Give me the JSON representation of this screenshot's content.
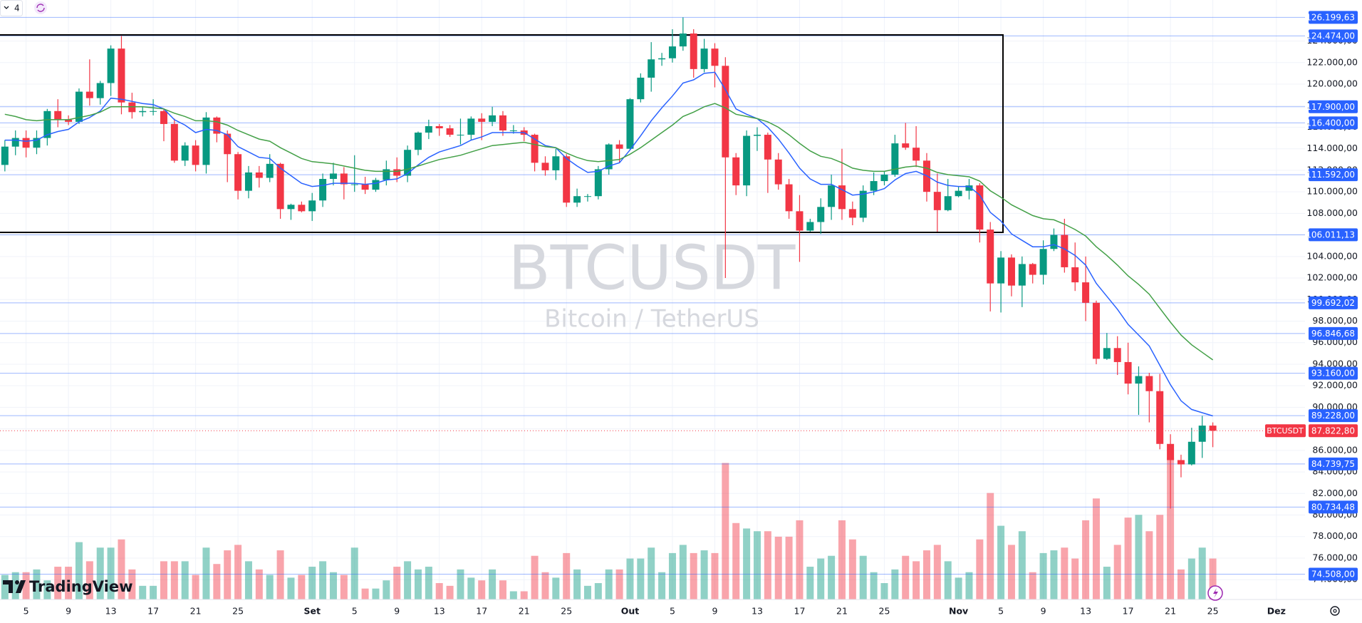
{
  "toolbar": {
    "count": "4"
  },
  "watermark": {
    "symbol": "BTCUSDT",
    "description": "Bitcoin / TetherUS"
  },
  "brand": "TradingView",
  "chart_data": {
    "type": "candlestick",
    "colors": {
      "up": "#089981",
      "down": "#f23645",
      "price_line": "#2962ff"
    },
    "grid": true,
    "xlim": [
      -0.46,
      122.7
    ],
    "xticks": [
      {
        "value": 2,
        "label": "5"
      },
      {
        "value": 6,
        "label": "9"
      },
      {
        "value": 10,
        "label": "13"
      },
      {
        "value": 14,
        "label": "17"
      },
      {
        "value": 18,
        "label": "21"
      },
      {
        "value": 22,
        "label": "25"
      },
      {
        "value": 29,
        "label": "Set"
      },
      {
        "value": 33,
        "label": "5"
      },
      {
        "value": 37,
        "label": "9"
      },
      {
        "value": 41,
        "label": "13"
      },
      {
        "value": 45,
        "label": "17"
      },
      {
        "value": 49,
        "label": "21"
      },
      {
        "value": 53,
        "label": "25"
      },
      {
        "value": 59,
        "label": "Out"
      },
      {
        "value": 63,
        "label": "5"
      },
      {
        "value": 67,
        "label": "9"
      },
      {
        "value": 71,
        "label": "13"
      },
      {
        "value": 75,
        "label": "17"
      },
      {
        "value": 79,
        "label": "21"
      },
      {
        "value": 83,
        "label": "25"
      },
      {
        "value": 90,
        "label": "Nov"
      },
      {
        "value": 94,
        "label": "5"
      },
      {
        "value": 98,
        "label": "9"
      },
      {
        "value": 102,
        "label": "13"
      },
      {
        "value": 106,
        "label": "17"
      },
      {
        "value": 110,
        "label": "21"
      },
      {
        "value": 114,
        "label": "25"
      },
      {
        "value": 120,
        "label": "Dez"
      }
    ],
    "ylim": [
      72160,
      127810
    ],
    "yticks": [
      {
        "value": 74000,
        "label": "74.000,00"
      },
      {
        "value": 76000,
        "label": "76.000,00"
      },
      {
        "value": 78000,
        "label": "78.000,00"
      },
      {
        "value": 80000,
        "label": "80.000,00"
      },
      {
        "value": 82000,
        "label": "82.000,00"
      },
      {
        "value": 84000,
        "label": "84.000,00"
      },
      {
        "value": 86000,
        "label": "86.000,00"
      },
      {
        "value": 88000,
        "label": "88.000,00"
      },
      {
        "value": 90000,
        "label": "90.000,00"
      },
      {
        "value": 92000,
        "label": "92.000,00"
      },
      {
        "value": 94000,
        "label": "94.000,00"
      },
      {
        "value": 96000,
        "label": "96.000,00"
      },
      {
        "value": 98000,
        "label": "98.000,00"
      },
      {
        "value": 100000,
        "label": "100.000,00"
      },
      {
        "value": 102000,
        "label": "102.000,00"
      },
      {
        "value": 104000,
        "label": "104.000,00"
      },
      {
        "value": 106000,
        "label": "106.000,00"
      },
      {
        "value": 108000,
        "label": "108.000,00"
      },
      {
        "value": 110000,
        "label": "110.000,00"
      },
      {
        "value": 112000,
        "label": "112.000,00"
      },
      {
        "value": 114000,
        "label": "114.000,00"
      },
      {
        "value": 116000,
        "label": "116.000,00"
      },
      {
        "value": 118000,
        "label": "118.000,00"
      },
      {
        "value": 120000,
        "label": "120.000,00"
      },
      {
        "value": 122000,
        "label": "122.000,00"
      },
      {
        "value": 124000,
        "label": "124.000,00"
      }
    ],
    "ohlc": [
      [
        112500,
        114800,
        111900,
        114200
      ],
      [
        114200,
        115700,
        113400,
        115000
      ],
      [
        115000,
        115700,
        113200,
        114100
      ],
      [
        114100,
        115700,
        113500,
        115000
      ],
      [
        115000,
        117700,
        114300,
        117500
      ],
      [
        117500,
        118600,
        116000,
        116700
      ],
      [
        116700,
        117100,
        116200,
        116500
      ],
      [
        116500,
        119600,
        116300,
        119300
      ],
      [
        119300,
        122300,
        118000,
        118700
      ],
      [
        118700,
        120300,
        118100,
        120100
      ],
      [
        120100,
        123600,
        118900,
        123300
      ],
      [
        123300,
        124474,
        117200,
        118300
      ],
      [
        118300,
        119200,
        116800,
        117400
      ],
      [
        117400,
        117900,
        117000,
        117500
      ],
      [
        117500,
        118600,
        117100,
        117500
      ],
      [
        117500,
        117700,
        114700,
        116300
      ],
      [
        116300,
        116800,
        112700,
        112900
      ],
      [
        112900,
        114600,
        112400,
        114300
      ],
      [
        114300,
        114800,
        111900,
        112500
      ],
      [
        112500,
        117400,
        111700,
        116900
      ],
      [
        116900,
        117000,
        114600,
        115400
      ],
      [
        115400,
        115700,
        110900,
        113500
      ],
      [
        113500,
        113700,
        109300,
        110100
      ],
      [
        110100,
        112400,
        109400,
        111800
      ],
      [
        111800,
        112400,
        110400,
        111300
      ],
      [
        111300,
        113500,
        110900,
        112600
      ],
      [
        112600,
        112700,
        107500,
        108400
      ],
      [
        108400,
        108900,
        107400,
        108800
      ],
      [
        108800,
        109100,
        108100,
        108200
      ],
      [
        108200,
        109900,
        107300,
        109200
      ],
      [
        109200,
        111700,
        108600,
        111200
      ],
      [
        111200,
        112700,
        110600,
        111700
      ],
      [
        111700,
        112300,
        109300,
        110700
      ],
      [
        110700,
        113400,
        110000,
        110700
      ],
      [
        110700,
        111400,
        109800,
        110200
      ],
      [
        110200,
        111300,
        110000,
        111100
      ],
      [
        111100,
        112900,
        110600,
        112100
      ],
      [
        112100,
        113200,
        110900,
        111500
      ],
      [
        111500,
        114300,
        110900,
        113900
      ],
      [
        113900,
        115600,
        113400,
        115500
      ],
      [
        115500,
        116700,
        114900,
        116100
      ],
      [
        116100,
        116300,
        115200,
        115900
      ],
      [
        115900,
        116200,
        115100,
        115300
      ],
      [
        115300,
        116800,
        114400,
        115300
      ],
      [
        115300,
        117000,
        114800,
        116800
      ],
      [
        116800,
        117300,
        114800,
        116500
      ],
      [
        116500,
        117900,
        116100,
        117100
      ],
      [
        117100,
        117500,
        115200,
        115700
      ],
      [
        115700,
        116200,
        115400,
        115700
      ],
      [
        115700,
        116000,
        114700,
        115300
      ],
      [
        115300,
        115400,
        111900,
        112700
      ],
      [
        112700,
        113300,
        111500,
        112000
      ],
      [
        112000,
        114000,
        111100,
        113300
      ],
      [
        113300,
        113500,
        108600,
        109000
      ],
      [
        109000,
        110300,
        108600,
        109600
      ],
      [
        109600,
        109800,
        109100,
        109600
      ],
      [
        109600,
        112400,
        109300,
        112100
      ],
      [
        112100,
        114500,
        111600,
        114400
      ],
      [
        114400,
        114800,
        112700,
        114000
      ],
      [
        114000,
        118700,
        113900,
        118600
      ],
      [
        118600,
        121000,
        118300,
        120600
      ],
      [
        120600,
        123900,
        119300,
        122300
      ],
      [
        122300,
        122900,
        121700,
        122400
      ],
      [
        122400,
        125100,
        122000,
        123500
      ],
      [
        123500,
        126199.63,
        123100,
        124700
      ],
      [
        124700,
        125100,
        120600,
        121400
      ],
      [
        121400,
        124200,
        121100,
        123300
      ],
      [
        123300,
        123800,
        119700,
        121700
      ],
      [
        121700,
        122500,
        102000,
        113200
      ],
      [
        113200,
        113600,
        109700,
        110600
      ],
      [
        110600,
        115700,
        109600,
        115200
      ],
      [
        115200,
        116000,
        113800,
        115300
      ],
      [
        115300,
        115500,
        109900,
        113000
      ],
      [
        113000,
        113600,
        110200,
        110700
      ],
      [
        110700,
        111200,
        107500,
        108200
      ],
      [
        108200,
        109700,
        103500,
        106400
      ],
      [
        106400,
        107500,
        106300,
        107200
      ],
      [
        107200,
        109400,
        106100,
        108600
      ],
      [
        108600,
        111600,
        107400,
        110600
      ],
      [
        110600,
        114000,
        107400,
        108400
      ],
      [
        108400,
        109100,
        106900,
        107600
      ],
      [
        107600,
        110600,
        107200,
        110100
      ],
      [
        110100,
        111800,
        109700,
        111000
      ],
      [
        111000,
        111900,
        110600,
        111600
      ],
      [
        111600,
        115300,
        111400,
        114500
      ],
      [
        114500,
        116400,
        113900,
        114100
      ],
      [
        114100,
        116100,
        112300,
        112900
      ],
      [
        112900,
        113600,
        109100,
        110000
      ],
      [
        110000,
        111700,
        106300,
        108300
      ],
      [
        108300,
        111200,
        108200,
        109600
      ],
      [
        109600,
        110500,
        109500,
        110100
      ],
      [
        110100,
        111200,
        109300,
        110600
      ],
      [
        110600,
        110800,
        105300,
        106500
      ],
      [
        106500,
        107200,
        98900,
        101500
      ],
      [
        101500,
        104500,
        98800,
        103900
      ],
      [
        103900,
        104200,
        100300,
        101300
      ],
      [
        101300,
        104000,
        99300,
        103300
      ],
      [
        103300,
        103400,
        101500,
        102300
      ],
      [
        102300,
        105500,
        101400,
        104700
      ],
      [
        104700,
        106600,
        104500,
        106000
      ],
      [
        106000,
        107500,
        102500,
        103000
      ],
      [
        103000,
        105300,
        100800,
        101600
      ],
      [
        101600,
        104000,
        98000,
        99700
      ],
      [
        99700,
        99900,
        94000,
        94500
      ],
      [
        94500,
        96900,
        94400,
        95500
      ],
      [
        95500,
        96600,
        93000,
        94200
      ],
      [
        94200,
        96000,
        91200,
        92200
      ],
      [
        92200,
        93800,
        89300,
        92900
      ],
      [
        92900,
        93200,
        88600,
        91500
      ],
      [
        91500,
        93100,
        86100,
        86600
      ],
      [
        86600,
        87500,
        80600,
        85100
      ],
      [
        85100,
        85600,
        83500,
        84700
      ],
      [
        84700,
        88100,
        84600,
        86800
      ],
      [
        86800,
        89200,
        85300,
        88300
      ],
      [
        88300,
        88600,
        86300,
        87822.8
      ]
    ],
    "volume": [
      9,
      10,
      10,
      11,
      7,
      12,
      12,
      21,
      14,
      19,
      19,
      22,
      11,
      5,
      5,
      14,
      14,
      14,
      9,
      19,
      13,
      18,
      20,
      14,
      11,
      9,
      18,
      8,
      9,
      12,
      14,
      10,
      9,
      19,
      4,
      4,
      7,
      12,
      14,
      11,
      12,
      6,
      5,
      11,
      8,
      7,
      11,
      7,
      3,
      3,
      16,
      10,
      8,
      17,
      11,
      5,
      6,
      11,
      11,
      15,
      15,
      19,
      10,
      17,
      20,
      17,
      18,
      17,
      50,
      28,
      26,
      25,
      25,
      23,
      23,
      29,
      12,
      15,
      16,
      29,
      22,
      16,
      10,
      6,
      11,
      16,
      14,
      18,
      20,
      14,
      8,
      10,
      22,
      39,
      27,
      20,
      25,
      10,
      17,
      18,
      19,
      15,
      29,
      37,
      12,
      20,
      30,
      31,
      25,
      31,
      52,
      11,
      15,
      19,
      15
    ],
    "lines": [
      {
        "color": "#2962ff",
        "values": [
          114800,
          114800,
          114700,
          114800,
          115300,
          115600,
          115800,
          116500,
          116900,
          117500,
          118700,
          118600,
          118400,
          118200,
          118100,
          117700,
          116700,
          116200,
          115500,
          115800,
          115700,
          115300,
          114200,
          113700,
          113200,
          113100,
          112200,
          111500,
          110800,
          110500,
          110600,
          110800,
          110800,
          110800,
          110700,
          110800,
          111100,
          111200,
          111700,
          112500,
          113200,
          113700,
          114000,
          114300,
          114800,
          115100,
          115500,
          115500,
          115500,
          115500,
          114900,
          114300,
          114100,
          113100,
          112400,
          111800,
          111900,
          112400,
          112700,
          113900,
          115200,
          116600,
          117800,
          118900,
          120100,
          120400,
          121000,
          121100,
          119500,
          117700,
          117200,
          116800,
          116000,
          114900,
          113600,
          112200,
          111200,
          110700,
          110700,
          110200,
          109700,
          109800,
          110000,
          110300,
          111100,
          111700,
          111900,
          111500,
          110900,
          110600,
          110500,
          110500,
          109700,
          108100,
          107300,
          106100,
          105500,
          104900,
          104900,
          105100,
          104700,
          104100,
          103200,
          101500,
          100300,
          99100,
          97700,
          96700,
          95700,
          93900,
          92100,
          90600,
          89800,
          89500,
          89200
        ]
      },
      {
        "color": "#43a047",
        "values": [
          117200,
          117000,
          116700,
          116600,
          116700,
          116700,
          116700,
          116900,
          117100,
          117400,
          117900,
          117900,
          117900,
          117900,
          117800,
          117700,
          117300,
          117000,
          116600,
          116600,
          116500,
          116200,
          115700,
          115300,
          114900,
          114700,
          114100,
          113600,
          113100,
          112800,
          112700,
          112600,
          112400,
          112200,
          112000,
          111900,
          111900,
          111900,
          112100,
          112400,
          112700,
          113000,
          113200,
          113400,
          113700,
          114000,
          114300,
          114400,
          114500,
          114600,
          114400,
          114200,
          114100,
          113600,
          113200,
          112900,
          112800,
          112900,
          113000,
          113500,
          114100,
          114800,
          115500,
          116200,
          117000,
          117400,
          117900,
          118200,
          117800,
          117200,
          117000,
          116800,
          116500,
          116000,
          115300,
          114500,
          113800,
          113300,
          113100,
          112700,
          112200,
          112000,
          111900,
          111900,
          112100,
          112300,
          112400,
          112200,
          111800,
          111600,
          111500,
          111400,
          111000,
          110100,
          109500,
          108800,
          108300,
          107800,
          107500,
          107400,
          107000,
          106500,
          105900,
          104900,
          104100,
          103200,
          102200,
          101400,
          100500,
          99200,
          97900,
          96700,
          95800,
          95100,
          94400
        ]
      }
    ],
    "price_lines": [
      {
        "value": 126199.63,
        "label": "126.199,63"
      },
      {
        "value": 124474,
        "label": "124.474,00"
      },
      {
        "value": 117900,
        "label": "117.900,00"
      },
      {
        "value": 116400,
        "label": "116.400,00"
      },
      {
        "value": 111592,
        "label": "111.592,00"
      },
      {
        "value": 106011.13,
        "label": "106.011,13"
      },
      {
        "value": 99692.02,
        "label": "99.692,02"
      },
      {
        "value": 96846.68,
        "label": "96.846,68"
      },
      {
        "value": 93160,
        "label": "93.160,00"
      },
      {
        "value": 89228,
        "label": "89.228,00"
      },
      {
        "value": 84739.75,
        "label": "84.739,75"
      },
      {
        "value": 80734.48,
        "label": "80.734,48"
      },
      {
        "value": 74508,
        "label": "74.508,00"
      }
    ],
    "last_price": {
      "symbol": "BTCUSDT",
      "label": "87.822,80"
    }
  }
}
